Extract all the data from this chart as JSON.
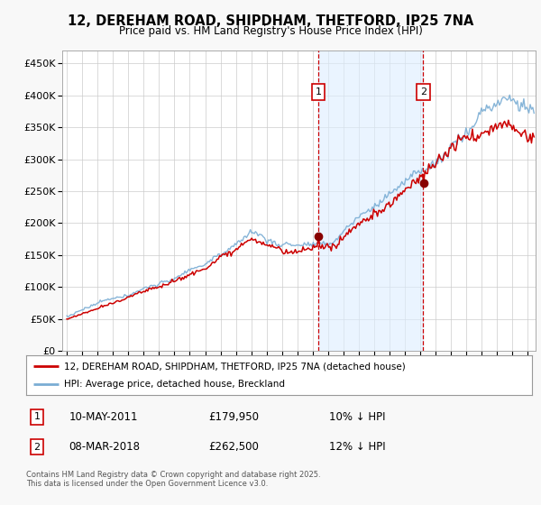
{
  "title": "12, DEREHAM ROAD, SHIPDHAM, THETFORD, IP25 7NA",
  "subtitle": "Price paid vs. HM Land Registry's House Price Index (HPI)",
  "yticks": [
    0,
    50000,
    100000,
    150000,
    200000,
    250000,
    300000,
    350000,
    400000,
    450000
  ],
  "ylim": [
    0,
    470000
  ],
  "xlim_start": 1994.7,
  "xlim_end": 2025.5,
  "sale1_date": 2011.36,
  "sale1_price": 179950,
  "sale2_date": 2018.19,
  "sale2_price": 262500,
  "legend_line1": "12, DEREHAM ROAD, SHIPDHAM, THETFORD, IP25 7NA (detached house)",
  "legend_line2": "HPI: Average price, detached house, Breckland",
  "footer": "Contains HM Land Registry data © Crown copyright and database right 2025.\nThis data is licensed under the Open Government Licence v3.0.",
  "hpi_color": "#7aadd4",
  "hpi_fill_color": "#ddeeff",
  "price_color": "#cc0000",
  "vline_color": "#cc0000",
  "background_color": "#f8f8f8",
  "plot_bg_color": "#ffffff",
  "grid_color": "#cccccc",
  "shade_color": "#ddeeff"
}
